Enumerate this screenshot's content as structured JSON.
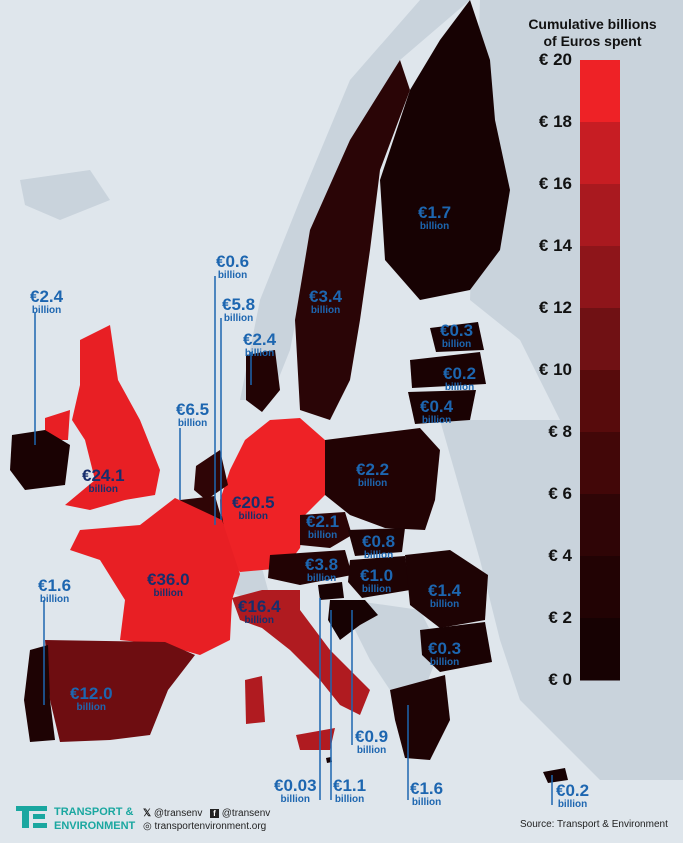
{
  "legend": {
    "title_line1": "Cumulative billions",
    "title_line2": "of Euros spent",
    "ticks": [
      "€ 20",
      "€ 18",
      "€ 16",
      "€ 14",
      "€ 12",
      "€ 10",
      "€ 8",
      "€ 6",
      "€ 4",
      "€ 2",
      "€ 0"
    ],
    "colors": [
      "#ee2226",
      "#c71d23",
      "#a9191f",
      "#8e151a",
      "#701114",
      "#570b0c",
      "#420708",
      "#2f0506",
      "#220304",
      "#170203"
    ]
  },
  "unit": "billion",
  "labels": [
    {
      "id": "uk",
      "value": "€24.1"
    },
    {
      "id": "ireland",
      "value": "€2.4"
    },
    {
      "id": "france",
      "value": "€20.5"
    },
    {
      "id": "germany",
      "value": "€36.0"
    },
    {
      "id": "netherlands",
      "value": "€6.5"
    },
    {
      "id": "belgium",
      "value": "€5.8"
    },
    {
      "id": "luxembourg",
      "value": "€0.6"
    },
    {
      "id": "denmark",
      "value": "€2.4"
    },
    {
      "id": "sweden",
      "value": "€3.4"
    },
    {
      "id": "finland",
      "value": "€1.7"
    },
    {
      "id": "estonia",
      "value": "€0.3"
    },
    {
      "id": "latvia",
      "value": "€0.2"
    },
    {
      "id": "lithuania",
      "value": "€0.4"
    },
    {
      "id": "poland",
      "value": "€2.2"
    },
    {
      "id": "czechia",
      "value": "€2.1"
    },
    {
      "id": "slovakia",
      "value": "€0.8"
    },
    {
      "id": "austria",
      "value": "€3.8"
    },
    {
      "id": "hungary",
      "value": "€1.0"
    },
    {
      "id": "romania",
      "value": "€1.4"
    },
    {
      "id": "bulgaria",
      "value": "€0.3"
    },
    {
      "id": "italy",
      "value": "€16.4"
    },
    {
      "id": "spain",
      "value": "€12.0"
    },
    {
      "id": "portugal",
      "value": "€1.6"
    },
    {
      "id": "slovenia",
      "value": "€0.03"
    },
    {
      "id": "croatia",
      "value": "€1.1"
    },
    {
      "id": "malta",
      "value": "€0.9"
    },
    {
      "id": "greece",
      "value": "€1.6"
    },
    {
      "id": "cyprus",
      "value": "€0.2"
    }
  ],
  "footer": {
    "brand_line1": "TRANSPORT &",
    "brand_line2": "ENVIRONMENT",
    "twitter": "@transenv",
    "facebook": "@transenv",
    "website": "transportenvironment.org",
    "source": "Source: Transport & Environment"
  }
}
